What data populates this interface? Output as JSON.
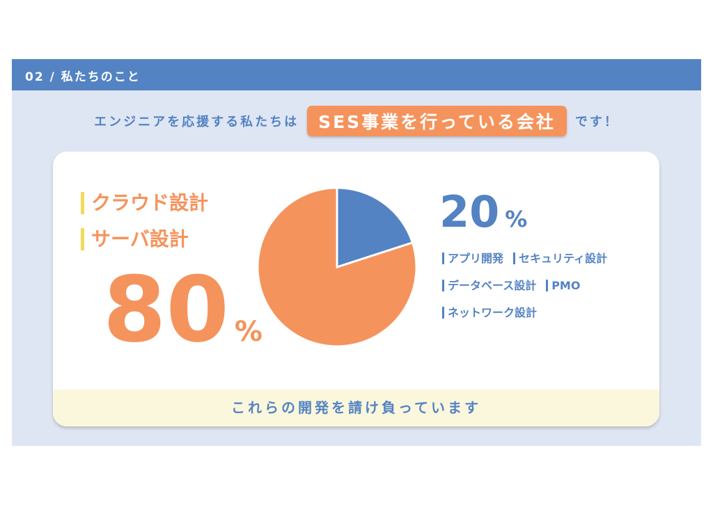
{
  "header": {
    "title": "02 / 私たちのこと"
  },
  "lead": {
    "before": "エンジニアを応援する私たちは",
    "highlight": "SES事業を行っている会社",
    "after": "です！"
  },
  "left": {
    "labels": [
      "クラウド設計",
      "サーバ設計"
    ],
    "value": "80",
    "unit": "%"
  },
  "right": {
    "value": "20",
    "unit": "%",
    "items": [
      "アプリ開発",
      "セキュリティ設計",
      "データベース設計",
      "PMO",
      "ネットワーク設計"
    ]
  },
  "footer": {
    "text": "これらの開発を請け負っています"
  },
  "colors": {
    "blue": "#5383c3",
    "orange": "#f5935c",
    "yellow": "#f3d95c"
  },
  "chart_data": {
    "type": "pie",
    "values": [
      20,
      80
    ],
    "colors": [
      "#5383c3",
      "#f5935c"
    ],
    "start": "12 o'clock",
    "direction": "clockwise"
  }
}
